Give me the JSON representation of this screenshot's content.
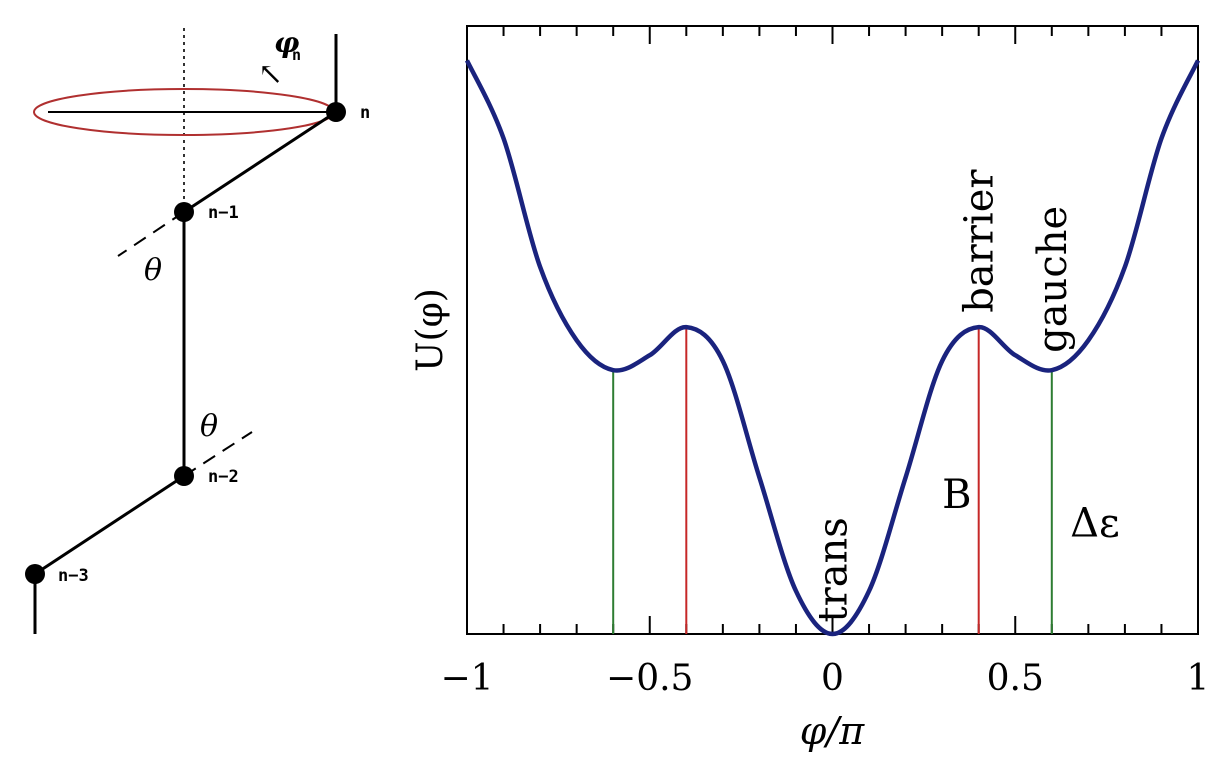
{
  "chain_diagram": {
    "angle_label_upper": "θ",
    "angle_label_lower": "θ",
    "torsion_label": "φ",
    "torsion_subscript": "n",
    "rotation_arrow": "↖",
    "atoms": [
      {
        "id": "n",
        "label": "n"
      },
      {
        "id": "n-1",
        "label": "n−1"
      },
      {
        "id": "n-2",
        "label": "n−2"
      },
      {
        "id": "n-3",
        "label": "n−3"
      }
    ],
    "colors": {
      "circle": "#b03030",
      "line": "#000000"
    }
  },
  "chart_data": {
    "type": "line",
    "title": "",
    "xlabel": "φ/π",
    "ylabel": "U(φ)",
    "xlim": [
      -1,
      1
    ],
    "ylim": [
      0,
      1.06
    ],
    "xticks": [
      -1,
      -0.5,
      0,
      0.5,
      1
    ],
    "xtick_labels": [
      "−1",
      "−0.5",
      "0",
      "0.5",
      "1"
    ],
    "grid": false,
    "series": [
      {
        "color": "#1a237e",
        "x": [
          -1,
          -0.9,
          -0.8,
          -0.7,
          -0.6,
          -0.5,
          -0.4,
          -0.3,
          -0.2,
          -0.1,
          0,
          0.1,
          0.2,
          0.3,
          0.4,
          0.5,
          0.6,
          0.7,
          0.8,
          0.9,
          1
        ],
        "y": [
          1.0,
          0.864,
          0.64,
          0.512,
          0.46,
          0.486,
          0.535,
          0.476,
          0.273,
          0.075,
          0.0,
          0.075,
          0.273,
          0.476,
          0.535,
          0.486,
          0.46,
          0.512,
          0.64,
          0.864,
          1.0
        ]
      }
    ],
    "vertical_markers": [
      {
        "x": -0.6,
        "color": "#2e7d32"
      },
      {
        "x": -0.4,
        "color": "#c62828"
      },
      {
        "x": 0.4,
        "color": "#c62828"
      },
      {
        "x": 0.6,
        "color": "#2e7d32"
      }
    ],
    "annotations": [
      {
        "text": "trans",
        "x": 0.0,
        "y": 0.02,
        "rotate": true
      },
      {
        "text": "barrier",
        "x": 0.4,
        "y": 0.56,
        "rotate": true
      },
      {
        "text": "gauche",
        "x": 0.6,
        "y": 0.49,
        "rotate": true
      },
      {
        "text": "B",
        "x": 0.3,
        "y": 0.22,
        "rotate": false
      },
      {
        "text": "Δε",
        "x": 0.65,
        "y": 0.17,
        "rotate": false
      }
    ]
  }
}
